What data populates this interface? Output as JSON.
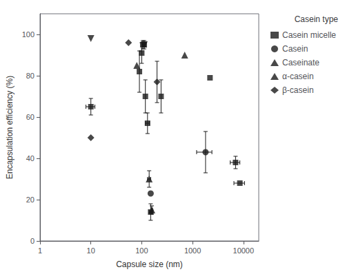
{
  "chart_data": {
    "type": "scatter",
    "xlabel": "Capsule size (nm)",
    "ylabel": "Encapsulation efficiency (%)",
    "legend_title": "Casein type",
    "log": "x",
    "xlim": [
      1,
      20000
    ],
    "ylim": [
      0,
      110
    ],
    "xticks": [
      1,
      10,
      100,
      1000,
      10000
    ],
    "yticks": [
      0,
      20,
      40,
      60,
      80,
      100
    ],
    "grid": false,
    "legend": "upper right",
    "series": [
      {
        "name": "Casein micelle",
        "color": "#1a1a1a",
        "marker": "square",
        "x": [
          10,
          90,
          100,
          105,
          112,
          118,
          130,
          150,
          240,
          2200,
          7000,
          8500
        ],
        "values": [
          65,
          82,
          91,
          95,
          95,
          70,
          57,
          14,
          70,
          79,
          38,
          28
        ],
        "xerr_lo": [
          2,
          0,
          0,
          5,
          0,
          0,
          12,
          10,
          0,
          0,
          1500,
          2000
        ],
        "xerr_hi": [
          2,
          0,
          0,
          5,
          0,
          0,
          12,
          10,
          0,
          0,
          1500,
          2000
        ],
        "yerr_lo": [
          4,
          10,
          5,
          2,
          1,
          8,
          5,
          4,
          8,
          0,
          3,
          0
        ],
        "yerr_hi": [
          4,
          10,
          5,
          2,
          1,
          8,
          5,
          4,
          8,
          0,
          3,
          0
        ]
      },
      {
        "name": "Casein",
        "color": "#1a1a1a",
        "marker": "circle",
        "x": [
          150,
          1800
        ],
        "values": [
          23,
          43
        ],
        "xerr_lo": [
          0,
          600
        ],
        "xerr_hi": [
          0,
          600
        ],
        "yerr_lo": [
          0,
          10
        ],
        "yerr_hi": [
          0,
          10
        ]
      },
      {
        "name": "Caseinate",
        "color": "#1a1a1a",
        "marker": "triangle",
        "x": [
          80,
          140,
          158,
          700
        ],
        "values": [
          85,
          30,
          15,
          90
        ],
        "xerr_lo": [
          0,
          10,
          5,
          0
        ],
        "xerr_hi": [
          0,
          10,
          5,
          0
        ],
        "yerr_lo": [
          0,
          4,
          2,
          0
        ],
        "yerr_hi": [
          0,
          4,
          2,
          0
        ]
      },
      {
        "name": "α-casein",
        "color": "#1a1a1a",
        "marker": "triangle-down",
        "x": [
          10,
          112
        ],
        "values": [
          98,
          95
        ],
        "xerr_lo": [
          0,
          7
        ],
        "xerr_hi": [
          0,
          7
        ],
        "yerr_lo": [
          0,
          2
        ],
        "yerr_hi": [
          0,
          2
        ]
      },
      {
        "name": "β-casein",
        "color": "#1a1a1a",
        "marker": "diamond",
        "x": [
          10,
          55,
          200
        ],
        "values": [
          50,
          96,
          77
        ],
        "xerr_lo": [
          0,
          0,
          0
        ],
        "xerr_hi": [
          0,
          0,
          0
        ],
        "yerr_lo": [
          0,
          0,
          10
        ],
        "yerr_hi": [
          0,
          0,
          10
        ]
      }
    ]
  }
}
